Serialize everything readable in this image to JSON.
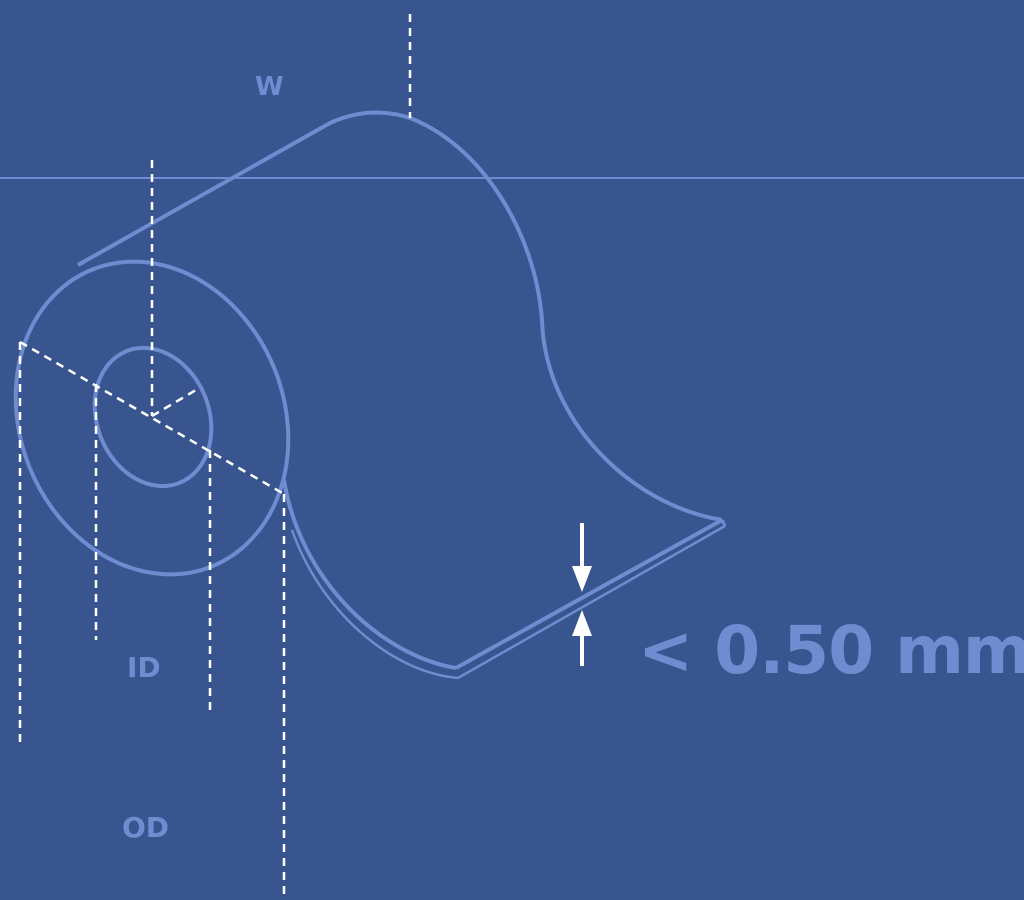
{
  "labels": {
    "width": "W",
    "inner_diameter": "ID",
    "outer_diameter": "OD",
    "thickness": "< 0.50 mm"
  },
  "colors": {
    "background": "#38558f",
    "outline": "#6f8cd0",
    "dimension_lines": "#ffffff",
    "label_text": "#6f8cd0"
  },
  "icons": {
    "thickness_arrows": "opposing-arrows-icon"
  }
}
